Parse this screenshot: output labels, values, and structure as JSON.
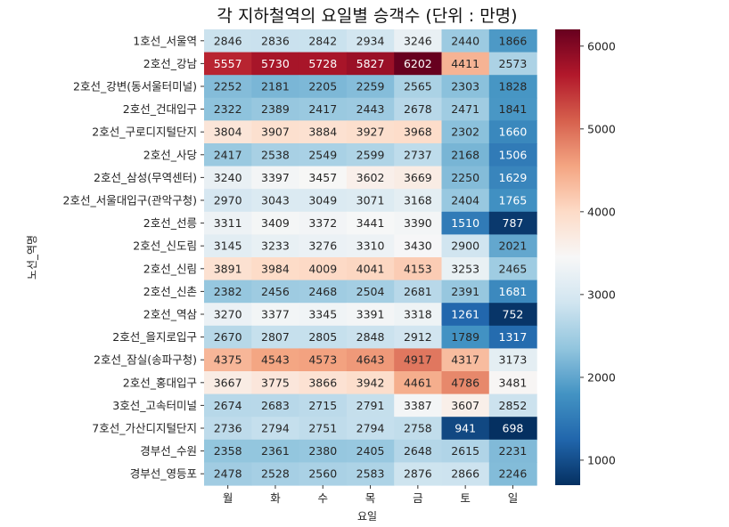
{
  "chart_data": {
    "type": "heatmap",
    "title": "각 지하철역의 요일별 승객수 (단위 : 만명)",
    "xlabel": "요일",
    "ylabel": "노선_역명",
    "x_categories": [
      "월",
      "화",
      "수",
      "목",
      "금",
      "토",
      "일"
    ],
    "y_categories": [
      "1호선_서울역",
      "2호선_강남",
      "2호선_강변(동서울터미널)",
      "2호선_건대입구",
      "2호선_구로디지털단지",
      "2호선_사당",
      "2호선_삼성(무역센터)",
      "2호선_서울대입구(관악구청)",
      "2호선_선릉",
      "2호선_신도림",
      "2호선_신림",
      "2호선_신촌",
      "2호선_역삼",
      "2호선_을지로입구",
      "2호선_잠실(송파구청)",
      "2호선_홍대입구",
      "3호선_고속터미널",
      "7호선_가산디지털단지",
      "경부선_수원",
      "경부선_영등포"
    ],
    "values": [
      [
        2846,
        2836,
        2842,
        2934,
        3246,
        2440,
        1866
      ],
      [
        5557,
        5730,
        5728,
        5827,
        6202,
        4411,
        2573
      ],
      [
        2252,
        2181,
        2205,
        2259,
        2565,
        2303,
        1828
      ],
      [
        2322,
        2389,
        2417,
        2443,
        2678,
        2471,
        1841
      ],
      [
        3804,
        3907,
        3884,
        3927,
        3968,
        2302,
        1660
      ],
      [
        2417,
        2538,
        2549,
        2599,
        2737,
        2168,
        1506
      ],
      [
        3240,
        3397,
        3457,
        3602,
        3669,
        2250,
        1629
      ],
      [
        2970,
        3043,
        3049,
        3071,
        3168,
        2404,
        1765
      ],
      [
        3311,
        3409,
        3372,
        3441,
        3390,
        1510,
        787
      ],
      [
        3145,
        3233,
        3276,
        3310,
        3430,
        2900,
        2021
      ],
      [
        3891,
        3984,
        4009,
        4041,
        4153,
        3253,
        2465
      ],
      [
        2382,
        2456,
        2468,
        2504,
        2681,
        2391,
        1681
      ],
      [
        3270,
        3377,
        3345,
        3391,
        3318,
        1261,
        752
      ],
      [
        2670,
        2807,
        2805,
        2848,
        2912,
        1789,
        1317
      ],
      [
        4375,
        4543,
        4573,
        4643,
        4917,
        4317,
        3173
      ],
      [
        3667,
        3775,
        3866,
        3942,
        4461,
        4786,
        3481
      ],
      [
        2674,
        2683,
        2715,
        2791,
        3387,
        3607,
        2852
      ],
      [
        2736,
        2794,
        2751,
        2794,
        2758,
        941,
        698
      ],
      [
        2358,
        2361,
        2380,
        2405,
        2648,
        2615,
        2231
      ],
      [
        2478,
        2528,
        2560,
        2583,
        2876,
        2866,
        2246
      ]
    ],
    "colormap": "RdBu_r",
    "vmin": 698,
    "vmax": 6202,
    "colorbar_ticks": [
      1000,
      2000,
      3000,
      4000,
      5000,
      6000
    ],
    "annotations": true,
    "grid": false
  }
}
